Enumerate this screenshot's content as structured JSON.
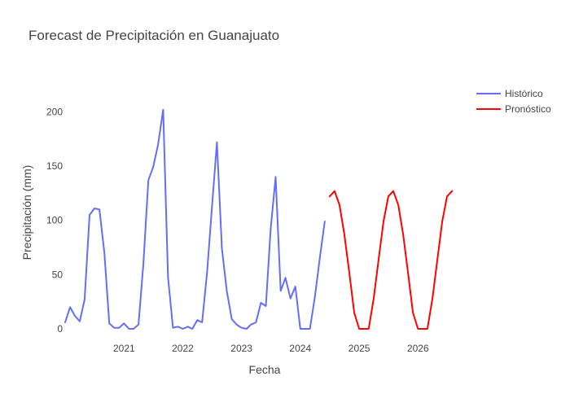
{
  "chart_data": {
    "type": "line",
    "title": "Forecast de Precipitación en Guanajuato",
    "xlabel": "Fecha",
    "ylabel": "Precipitación (mm)",
    "xlim": [
      "2020-01-01",
      "2026-10-15"
    ],
    "ylim": [
      -12,
      228
    ],
    "yticks": [
      0,
      50,
      100,
      150,
      200
    ],
    "xticks": [
      {
        "date": "2021-01-01",
        "label": "2021"
      },
      {
        "date": "2022-01-01",
        "label": "2022"
      },
      {
        "date": "2023-01-01",
        "label": "2023"
      },
      {
        "date": "2024-01-01",
        "label": "2024"
      },
      {
        "date": "2025-01-01",
        "label": "2025"
      },
      {
        "date": "2026-01-01",
        "label": "2026"
      }
    ],
    "grid": false,
    "legend_position": "top-right",
    "series": [
      {
        "name": "Histórico",
        "color": "#636efa",
        "points": [
          [
            "2020-01-01",
            6
          ],
          [
            "2020-02-01",
            20
          ],
          [
            "2020-03-01",
            12
          ],
          [
            "2020-04-01",
            7
          ],
          [
            "2020-05-01",
            27
          ],
          [
            "2020-06-01",
            105
          ],
          [
            "2020-07-01",
            111
          ],
          [
            "2020-08-01",
            110
          ],
          [
            "2020-09-01",
            70
          ],
          [
            "2020-10-01",
            5
          ],
          [
            "2020-11-01",
            1
          ],
          [
            "2020-12-01",
            1
          ],
          [
            "2021-01-01",
            5
          ],
          [
            "2021-02-01",
            0
          ],
          [
            "2021-03-01",
            0
          ],
          [
            "2021-04-01",
            4
          ],
          [
            "2021-05-01",
            60
          ],
          [
            "2021-06-01",
            137
          ],
          [
            "2021-07-01",
            149
          ],
          [
            "2021-08-01",
            170
          ],
          [
            "2021-09-01",
            202
          ],
          [
            "2021-10-01",
            48
          ],
          [
            "2021-11-01",
            1
          ],
          [
            "2021-12-01",
            2
          ],
          [
            "2022-01-01",
            0
          ],
          [
            "2022-02-01",
            2
          ],
          [
            "2022-03-01",
            0
          ],
          [
            "2022-04-01",
            8
          ],
          [
            "2022-05-01",
            6
          ],
          [
            "2022-06-01",
            52
          ],
          [
            "2022-07-01",
            112
          ],
          [
            "2022-08-01",
            172
          ],
          [
            "2022-09-01",
            74
          ],
          [
            "2022-10-01",
            35
          ],
          [
            "2022-11-01",
            9
          ],
          [
            "2022-12-01",
            4
          ],
          [
            "2023-01-01",
            1
          ],
          [
            "2023-02-01",
            0
          ],
          [
            "2023-03-01",
            4
          ],
          [
            "2023-04-01",
            6
          ],
          [
            "2023-05-01",
            24
          ],
          [
            "2023-06-01",
            21
          ],
          [
            "2023-07-01",
            92
          ],
          [
            "2023-08-01",
            140
          ],
          [
            "2023-09-01",
            35
          ],
          [
            "2023-10-01",
            47
          ],
          [
            "2023-11-01",
            28
          ],
          [
            "2023-12-01",
            39
          ],
          [
            "2024-01-01",
            0
          ],
          [
            "2024-02-01",
            0
          ],
          [
            "2024-03-01",
            0
          ],
          [
            "2024-04-01",
            30
          ],
          [
            "2024-05-01",
            65
          ],
          [
            "2024-06-01",
            99
          ]
        ]
      },
      {
        "name": "Pronóstico",
        "color": "#ff0000",
        "points": [
          [
            "2024-07-01",
            122
          ],
          [
            "2024-08-01",
            127
          ],
          [
            "2024-09-01",
            114
          ],
          [
            "2024-10-01",
            87
          ],
          [
            "2024-11-01",
            51
          ],
          [
            "2024-12-01",
            15
          ],
          [
            "2025-01-01",
            0
          ],
          [
            "2025-02-01",
            0
          ],
          [
            "2025-03-01",
            0
          ],
          [
            "2025-04-01",
            28
          ],
          [
            "2025-05-01",
            63
          ],
          [
            "2025-06-01",
            99
          ],
          [
            "2025-07-01",
            122
          ],
          [
            "2025-08-01",
            127
          ],
          [
            "2025-09-01",
            114
          ],
          [
            "2025-10-01",
            87
          ],
          [
            "2025-11-01",
            51
          ],
          [
            "2025-12-01",
            15
          ],
          [
            "2026-01-01",
            0
          ],
          [
            "2026-02-01",
            0
          ],
          [
            "2026-03-01",
            0
          ],
          [
            "2026-04-01",
            28
          ],
          [
            "2026-05-01",
            63
          ],
          [
            "2026-06-01",
            99
          ],
          [
            "2026-07-01",
            122
          ],
          [
            "2026-08-01",
            127
          ]
        ]
      }
    ]
  }
}
